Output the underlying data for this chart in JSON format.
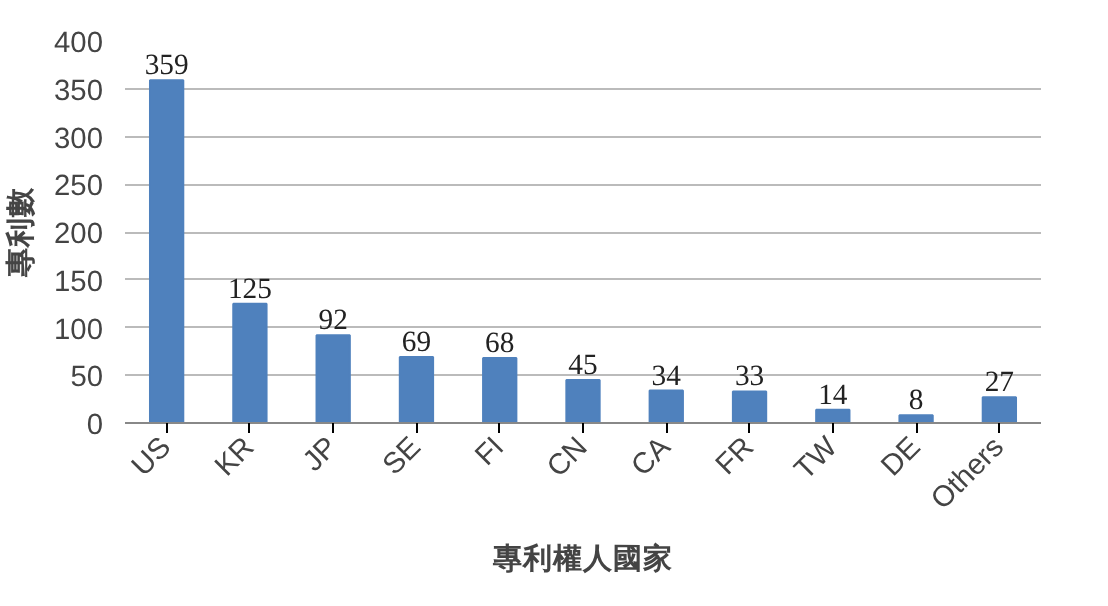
{
  "chart_data": {
    "type": "bar",
    "xlabel": "專利權人國家",
    "ylabel": "專利數",
    "categories": [
      "US",
      "KR",
      "JP",
      "SE",
      "FI",
      "CN",
      "CA",
      "FR",
      "TW",
      "DE",
      "Others"
    ],
    "values": [
      359,
      125,
      92,
      69,
      68,
      45,
      34,
      33,
      14,
      8,
      27
    ],
    "color": "#4f81bd",
    "ylim": [
      0,
      400
    ],
    "yticks": [
      0,
      50,
      100,
      150,
      200,
      250,
      300,
      350,
      400
    ],
    "grid": "y",
    "data_labels": true
  }
}
